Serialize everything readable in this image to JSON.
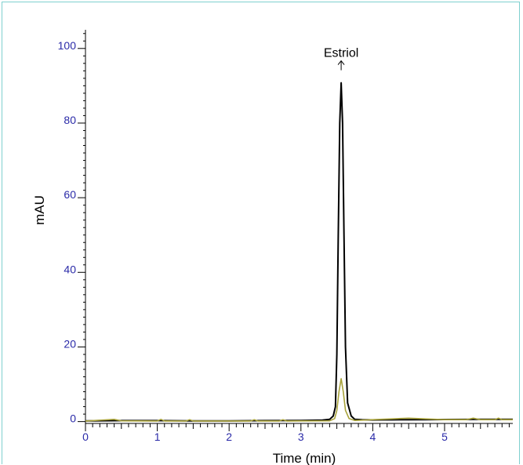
{
  "chart_data": {
    "type": "line",
    "xlabel": "Time (min)",
    "ylabel": "mAU",
    "xlim": [
      0,
      5.95
    ],
    "ylim": [
      -0.5,
      105
    ],
    "x_ticks": [
      0,
      1,
      2,
      3,
      4,
      5
    ],
    "y_ticks": [
      0,
      20,
      40,
      60,
      80,
      100
    ],
    "grid": false,
    "series": [
      {
        "color": "#000000",
        "points": [
          [
            0,
            0.2
          ],
          [
            0.5,
            0.25
          ],
          [
            1.0,
            0.25
          ],
          [
            1.5,
            0.2
          ],
          [
            2.0,
            0.2
          ],
          [
            2.5,
            0.25
          ],
          [
            3.0,
            0.3
          ],
          [
            3.3,
            0.4
          ],
          [
            3.4,
            0.6
          ],
          [
            3.45,
            1.5
          ],
          [
            3.48,
            4
          ],
          [
            3.5,
            18
          ],
          [
            3.52,
            50
          ],
          [
            3.54,
            80
          ],
          [
            3.56,
            90.8
          ],
          [
            3.58,
            80
          ],
          [
            3.6,
            50
          ],
          [
            3.62,
            20
          ],
          [
            3.65,
            5
          ],
          [
            3.7,
            1.5
          ],
          [
            3.75,
            0.6
          ],
          [
            3.85,
            0.5
          ],
          [
            4.0,
            0.45
          ],
          [
            4.5,
            0.5
          ],
          [
            5.0,
            0.55
          ],
          [
            5.5,
            0.6
          ],
          [
            5.95,
            0.6
          ]
        ]
      },
      {
        "color": "#a8a23a",
        "points": [
          [
            0,
            0.15
          ],
          [
            0.4,
            0.6
          ],
          [
            0.5,
            0.2
          ],
          [
            1.0,
            0.15
          ],
          [
            1.05,
            0.6
          ],
          [
            1.1,
            0.15
          ],
          [
            1.4,
            0.15
          ],
          [
            1.45,
            0.5
          ],
          [
            1.5,
            0.15
          ],
          [
            2.3,
            0.15
          ],
          [
            2.35,
            0.5
          ],
          [
            2.4,
            0.15
          ],
          [
            2.7,
            0.15
          ],
          [
            2.75,
            0.5
          ],
          [
            2.8,
            0.15
          ],
          [
            3.4,
            0.2
          ],
          [
            3.47,
            0.8
          ],
          [
            3.5,
            3
          ],
          [
            3.53,
            8
          ],
          [
            3.56,
            11.5
          ],
          [
            3.59,
            8
          ],
          [
            3.62,
            3
          ],
          [
            3.67,
            0.8
          ],
          [
            3.75,
            0.3
          ],
          [
            4.0,
            0.5
          ],
          [
            4.5,
            0.9
          ],
          [
            5.0,
            0.5
          ],
          [
            5.3,
            0.5
          ],
          [
            5.4,
            0.9
          ],
          [
            5.5,
            0.5
          ],
          [
            5.7,
            0.5
          ],
          [
            5.75,
            0.9
          ],
          [
            5.8,
            0.5
          ],
          [
            5.95,
            0.5
          ]
        ]
      }
    ],
    "annotations": [
      {
        "text": "Estriol",
        "x": 3.56,
        "y": 90.8
      }
    ]
  }
}
